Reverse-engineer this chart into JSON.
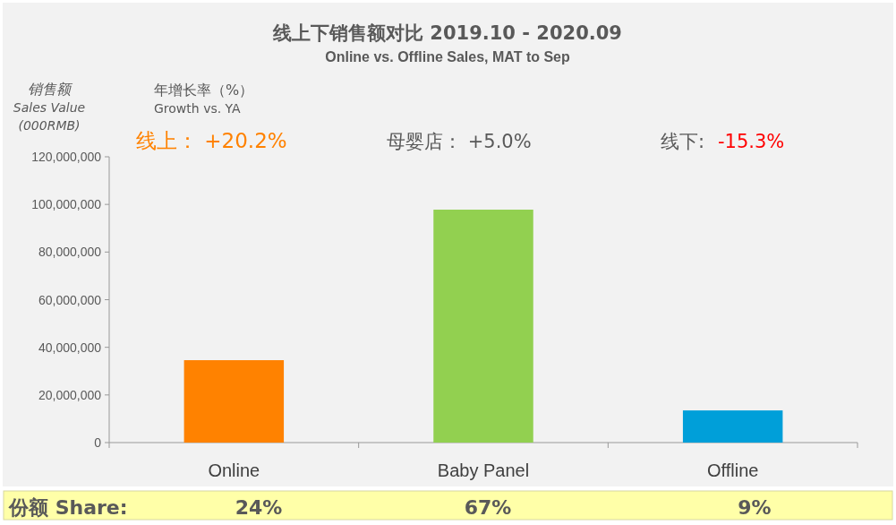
{
  "chart_data": {
    "type": "bar",
    "title": "线上下销售额对比  2019.10 - 2020.09",
    "subtitle": "Online vs. Offline Sales, MAT to Sep",
    "ylabel": "销售额\nSales Value\n(000RMB)",
    "categories": [
      "Online",
      "Baby Panel",
      "Offline"
    ],
    "values": [
      34600000,
      97800000,
      13500000
    ],
    "colors": [
      "#ff8200",
      "#92d050",
      "#009fd9"
    ],
    "ylim": [
      0,
      120000000
    ],
    "yticks": [
      {
        "value": 0,
        "label": "0"
      },
      {
        "value": 20000000,
        "label": "20,000,000"
      },
      {
        "value": 40000000,
        "label": "40,000,000"
      },
      {
        "value": 60000000,
        "label": "60,000,000"
      },
      {
        "value": 80000000,
        "label": "80,000,000"
      },
      {
        "value": 100000000,
        "label": "100,000,000"
      },
      {
        "value": 120000000,
        "label": "120,000,000"
      }
    ],
    "grid": false,
    "annotations": [
      "年增长率（%）\nGrowth vs. YA",
      "线上： +20.2%",
      "母婴店： +5.0%",
      "线下:",
      "-15.3%",
      "份额 Share:",
      "24%",
      "67%",
      "9%"
    ]
  }
}
